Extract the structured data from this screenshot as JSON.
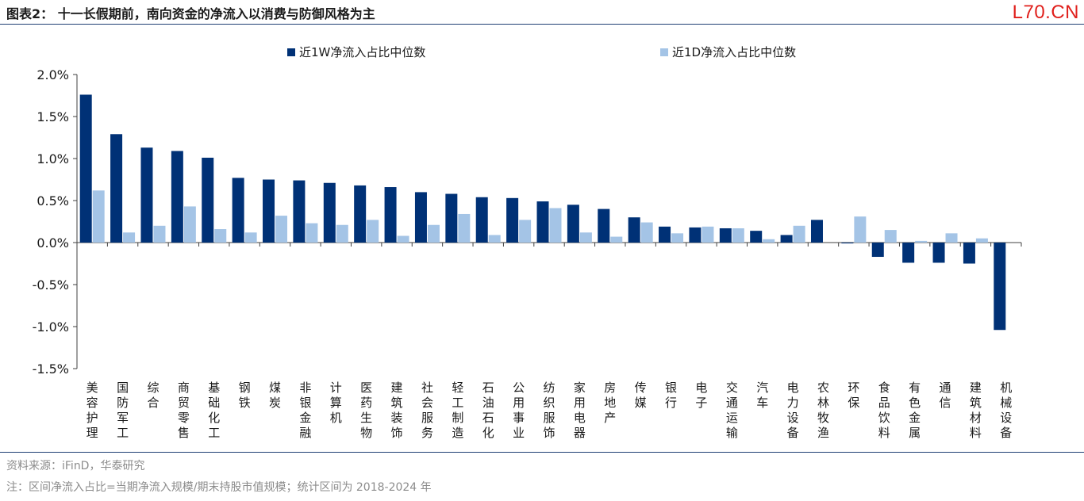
{
  "header": {
    "title": "图表2：  十一长假期前，南向资金的净流入以消费与防御风格为主",
    "watermark": "L70.CN"
  },
  "footer": {
    "source": "资料来源：iFinD，华泰研究",
    "note": "注：区间净流入占比=当期净流入规模/期末持股市值规模；统计区间为 2018-2024 年"
  },
  "colors": {
    "series_1w": "#003176",
    "series_1d": "#a4c4e6",
    "axis": "#404040"
  },
  "chart_data": {
    "type": "bar",
    "title": "",
    "xlabel": "",
    "ylabel": "",
    "ylim": [
      -1.5,
      2.0
    ],
    "yticks": [
      "2.0%",
      "1.5%",
      "1.0%",
      "0.5%",
      "0.0%",
      "-0.5%",
      "-1.0%",
      "-1.5%"
    ],
    "legend_position": "top",
    "grid": false,
    "categories": [
      "美容护理",
      "国防军工",
      "综合",
      "商贸零售",
      "基础化工",
      "钢铁",
      "煤炭",
      "非银金融",
      "计算机",
      "医药生物",
      "建筑装饰",
      "社会服务",
      "轻工制造",
      "石油石化",
      "公用事业",
      "纺织服饰",
      "家用电器",
      "房地产",
      "传媒",
      "银行",
      "电子",
      "交通运输",
      "汽车",
      "电力设备",
      "农林牧渔",
      "环保",
      "食品饮料",
      "有色金属",
      "通信",
      "建筑材料",
      "机械设备"
    ],
    "series": [
      {
        "name": "近1W净流入占比中位数",
        "values": [
          1.76,
          1.29,
          1.13,
          1.09,
          1.01,
          0.77,
          0.75,
          0.74,
          0.71,
          0.68,
          0.66,
          0.6,
          0.58,
          0.54,
          0.53,
          0.49,
          0.45,
          0.4,
          0.3,
          0.19,
          0.18,
          0.17,
          0.14,
          0.09,
          0.27,
          -0.01,
          -0.17,
          -0.24,
          -0.24,
          -0.25,
          -1.04
        ]
      },
      {
        "name": "近1D净流入占比中位数",
        "values": [
          0.62,
          0.12,
          0.2,
          0.43,
          0.16,
          0.12,
          0.32,
          0.23,
          0.21,
          0.27,
          0.08,
          0.21,
          0.34,
          0.09,
          0.27,
          0.41,
          0.12,
          0.07,
          0.24,
          0.11,
          0.19,
          0.17,
          0.04,
          0.2,
          0.0,
          0.31,
          0.15,
          0.02,
          0.11,
          0.05,
          0.0
        ]
      }
    ]
  }
}
